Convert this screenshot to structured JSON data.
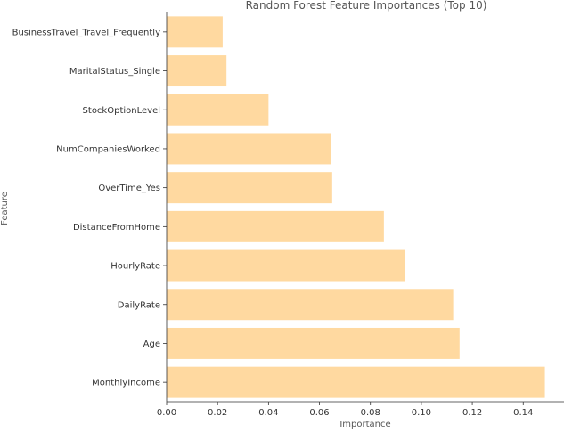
{
  "chart_data": {
    "type": "bar",
    "orientation": "horizontal",
    "title": "Random Forest Feature Importances (Top 10)",
    "xlabel": "Importance",
    "ylabel": "Feature",
    "xlim": [
      0.0,
      0.156
    ],
    "xticks": [
      "0.00",
      "0.02",
      "0.04",
      "0.06",
      "0.08",
      "0.10",
      "0.12",
      "0.14"
    ],
    "categories": [
      "BusinessTravel_Travel_Frequently",
      "MaritalStatus_Single",
      "StockOptionLevel",
      "NumCompaniesWorked",
      "OverTime_Yes",
      "DistanceFromHome",
      "HourlyRate",
      "DailyRate",
      "Age",
      "MonthlyIncome"
    ],
    "values": [
      0.022,
      0.0235,
      0.04,
      0.0647,
      0.065,
      0.0853,
      0.0937,
      0.1125,
      0.115,
      0.1485
    ],
    "bar_color": "#ffd9a0",
    "grid": false,
    "spines": [
      "left",
      "bottom"
    ]
  }
}
